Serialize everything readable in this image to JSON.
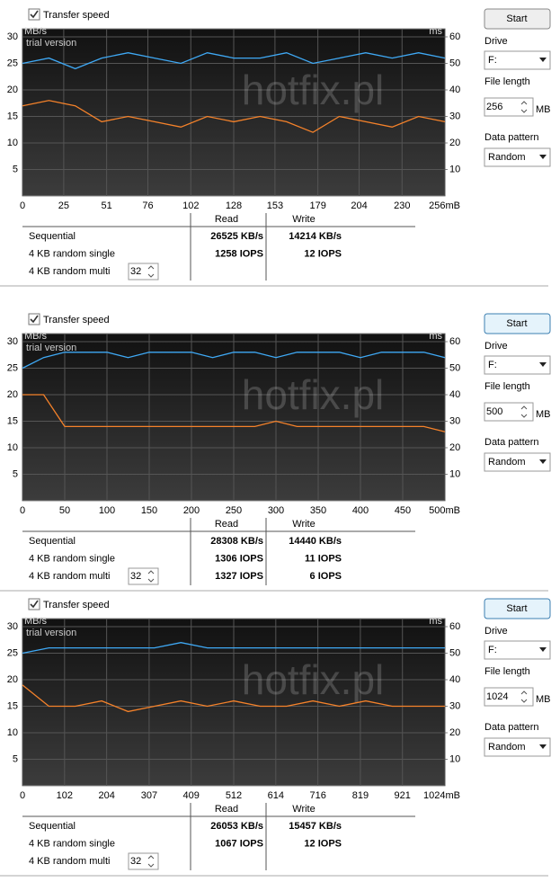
{
  "panels": [
    {
      "checkbox": "Transfer speed",
      "chart_data": {
        "type": "line",
        "y_label": "MB/s",
        "y2_label": "ms",
        "watermark": "hotfix.pl",
        "note": "trial version",
        "x": [
          0,
          16,
          32,
          48,
          64,
          80,
          96,
          112,
          128,
          144,
          160,
          176,
          192,
          208,
          224,
          240,
          256
        ],
        "series": [
          {
            "color": "#3fa9f5",
            "values": [
              25,
              26,
              24,
              26,
              27,
              26,
              25,
              27,
              26,
              26,
              27,
              25,
              26,
              27,
              26,
              27,
              26
            ]
          },
          {
            "color": "#f5822a",
            "values": [
              17,
              18,
              17,
              14,
              15,
              14,
              13,
              15,
              14,
              15,
              14,
              12,
              15,
              14,
              13,
              15,
              14
            ]
          }
        ],
        "xlim": [
          0,
          256
        ],
        "xticks": [
          0,
          25,
          51,
          76,
          102,
          128,
          153,
          179,
          204,
          230,
          {
            "value": 256,
            "label": "256mB"
          }
        ],
        "ylim": [
          0,
          30
        ],
        "yticks": [
          5,
          10,
          15,
          20,
          25,
          30
        ],
        "y2lim": [
          0,
          60
        ],
        "y2ticks": [
          10,
          20,
          30,
          40,
          50,
          60
        ],
        "grid": true
      },
      "table": {
        "columns": [
          "Read",
          "Write"
        ],
        "rows": [
          {
            "label": "Sequential",
            "read": "26525 KB/s",
            "write": "14214 KB/s"
          },
          {
            "label": "4 KB random single",
            "read": "1258 IOPS",
            "write": "12 IOPS"
          },
          {
            "label": "4 KB random multi",
            "queue": "32"
          }
        ]
      },
      "controls": {
        "start": "Start",
        "drive_label": "Drive",
        "drive": "F:",
        "file_length_label": "File length",
        "file_length": "256",
        "unit": "MB",
        "data_pattern_label": "Data pattern",
        "data_pattern": "Random"
      }
    },
    {
      "checkbox": "Transfer speed",
      "chart_data": {
        "type": "line",
        "y_label": "MB/s",
        "y2_label": "ms",
        "watermark": "hotfix.pl",
        "note": "trial version",
        "x": [
          0,
          25,
          50,
          75,
          100,
          125,
          150,
          175,
          200,
          225,
          250,
          275,
          300,
          325,
          350,
          375,
          400,
          425,
          450,
          475,
          500
        ],
        "series": [
          {
            "color": "#3fa9f5",
            "values": [
              25,
              27,
              28,
              28,
              28,
              27,
              28,
              28,
              28,
              27,
              28,
              28,
              27,
              28,
              28,
              28,
              27,
              28,
              28,
              28,
              27
            ]
          },
          {
            "color": "#f5822a",
            "values": [
              20,
              20,
              14,
              14,
              14,
              14,
              14,
              14,
              14,
              14,
              14,
              14,
              15,
              14,
              14,
              14,
              14,
              14,
              14,
              14,
              13
            ]
          }
        ],
        "xlim": [
          0,
          500
        ],
        "xticks": [
          0,
          50,
          100,
          150,
          200,
          250,
          300,
          350,
          400,
          450,
          {
            "value": 500,
            "label": "500mB"
          }
        ],
        "ylim": [
          0,
          30
        ],
        "yticks": [
          5,
          10,
          15,
          20,
          25,
          30
        ],
        "y2lim": [
          0,
          60
        ],
        "y2ticks": [
          10,
          20,
          30,
          40,
          50,
          60
        ],
        "grid": true
      },
      "table": {
        "columns": [
          "Read",
          "Write"
        ],
        "rows": [
          {
            "label": "Sequential",
            "read": "28308 KB/s",
            "write": "14440 KB/s"
          },
          {
            "label": "4 KB random single",
            "read": "1306 IOPS",
            "write": "11 IOPS"
          },
          {
            "label": "4 KB random multi",
            "queue": "32",
            "read": "1327 IOPS",
            "write": "6 IOPS"
          }
        ]
      },
      "controls": {
        "start": "Start",
        "drive_label": "Drive",
        "drive": "F:",
        "file_length_label": "File length",
        "file_length": "500",
        "unit": "MB",
        "data_pattern_label": "Data pattern",
        "data_pattern": "Random"
      }
    },
    {
      "checkbox": "Transfer speed",
      "chart_data": {
        "type": "line",
        "y_label": "MB/s",
        "y2_label": "ms",
        "watermark": "hotfix.pl",
        "note": "trial version",
        "x": [
          0,
          64,
          128,
          192,
          256,
          320,
          384,
          448,
          512,
          576,
          640,
          704,
          768,
          832,
          896,
          960,
          1024
        ],
        "series": [
          {
            "color": "#3fa9f5",
            "values": [
              25,
              26,
              26,
              26,
              26,
              26,
              27,
              26,
              26,
              26,
              26,
              26,
              26,
              26,
              26,
              26,
              26
            ]
          },
          {
            "color": "#f5822a",
            "values": [
              19,
              15,
              15,
              16,
              14,
              15,
              16,
              15,
              16,
              15,
              15,
              16,
              15,
              16,
              15,
              15,
              15
            ]
          }
        ],
        "xlim": [
          0,
          1024
        ],
        "xticks": [
          0,
          102,
          204,
          307,
          409,
          512,
          614,
          716,
          819,
          921,
          {
            "value": 1024,
            "label": "1024mB"
          }
        ],
        "ylim": [
          0,
          30
        ],
        "yticks": [
          5,
          10,
          15,
          20,
          25,
          30
        ],
        "y2lim": [
          0,
          60
        ],
        "y2ticks": [
          10,
          20,
          30,
          40,
          50,
          60
        ],
        "grid": true
      },
      "table": {
        "columns": [
          "Read",
          "Write"
        ],
        "rows": [
          {
            "label": "Sequential",
            "read": "26053 KB/s",
            "write": "15457 KB/s"
          },
          {
            "label": "4 KB random single",
            "read": "1067 IOPS",
            "write": "12 IOPS"
          },
          {
            "label": "4 KB random multi",
            "queue": "32"
          }
        ]
      },
      "controls": {
        "start": "Start",
        "drive_label": "Drive",
        "drive": "F:",
        "file_length_label": "File length",
        "file_length": "1024",
        "unit": "MB",
        "data_pattern_label": "Data pattern",
        "data_pattern": "Random"
      }
    }
  ]
}
